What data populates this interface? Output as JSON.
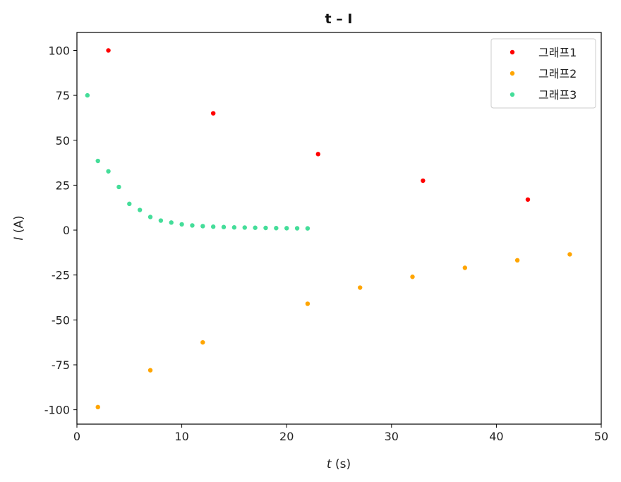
{
  "chart_data": {
    "type": "scatter",
    "title": "t – I",
    "xlabel": {
      "var": "t",
      "unit": " (s)"
    },
    "ylabel": {
      "var": "I",
      "unit": " (A)"
    },
    "xlim": [
      0,
      50
    ],
    "ylim": [
      -108,
      110
    ],
    "xticks": [
      0,
      10,
      20,
      30,
      40,
      50
    ],
    "yticks": [
      100,
      75,
      50,
      25,
      0,
      -25,
      -50,
      -75,
      -100
    ],
    "grid": false,
    "legend_position": "top-right",
    "series": [
      {
        "name": "그래프1",
        "color": "#ff0000",
        "x": [
          3,
          13,
          23,
          33,
          43
        ],
        "y": [
          100,
          65,
          42.3,
          27.5,
          17
        ]
      },
      {
        "name": "그래프2",
        "color": "#ffa500",
        "x": [
          2,
          7,
          12,
          22,
          27,
          32,
          37,
          42,
          47
        ],
        "y": [
          -98.5,
          -78,
          -62.5,
          -41,
          -32,
          -26,
          -21,
          -16.8,
          -13.5
        ]
      },
      {
        "name": "그래프3",
        "color": "#44dd99",
        "x": [
          1,
          2,
          3,
          4,
          5,
          6,
          7,
          8,
          9,
          10,
          11,
          12,
          13,
          14,
          15,
          16,
          17,
          18,
          19,
          20,
          21,
          22
        ],
        "y": [
          75,
          38.5,
          32.7,
          24,
          14.6,
          11.2,
          7.3,
          5.3,
          4.2,
          3.2,
          2.6,
          2.2,
          1.9,
          1.7,
          1.5,
          1.4,
          1.3,
          1.2,
          1.1,
          1.05,
          1.0,
          0.95
        ]
      }
    ]
  }
}
